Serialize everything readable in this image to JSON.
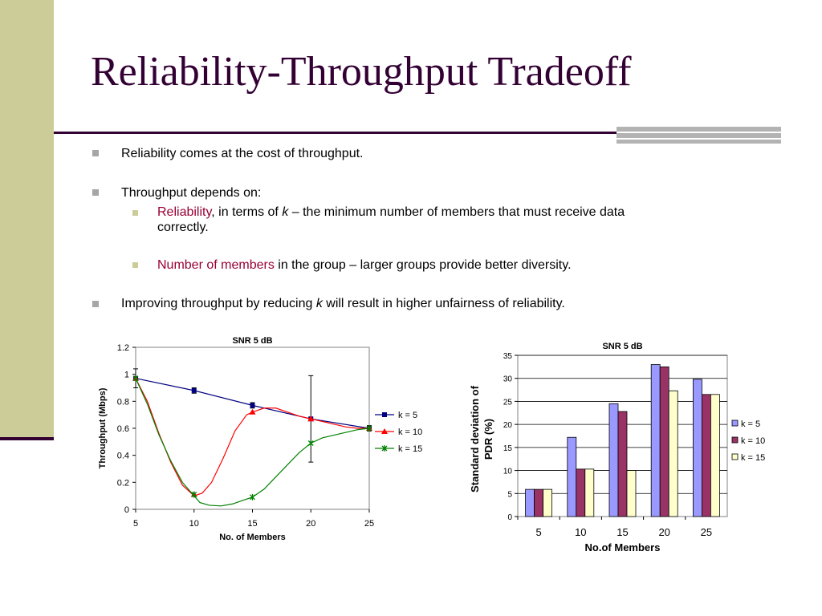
{
  "slide": {
    "title": "Reliability-Throughput Tradeoff",
    "bullets": [
      {
        "text": "Reliability comes at the cost of throughput."
      },
      {
        "text": "Throughput depends on:"
      },
      {
        "sub": true,
        "highlight": "Reliability",
        "text_a": ", in terms of ",
        "em": "k",
        "text_b": " – the minimum number of members that must receive data",
        "text_c": "correctly."
      },
      {
        "sub": true,
        "highlight": "Number of members",
        "text_a": " in the group – larger groups provide better diversity."
      },
      {
        "text_a": "Improving throughput by reducing ",
        "em": "k",
        "text_b": " will result in higher unfairness of reliability."
      }
    ]
  },
  "chart_data": [
    {
      "type": "line",
      "title": "SNR 5 dB",
      "xlabel": "No. of Members",
      "ylabel": "Throughput (Mbps)",
      "xlim": [
        5,
        25
      ],
      "ylim": [
        0,
        1.2
      ],
      "xticks": [
        "5",
        "10",
        "15",
        "20",
        "25"
      ],
      "yticks": [
        "0",
        "0.2",
        "0.4",
        "0.6",
        "0.8",
        "1",
        "1.2"
      ],
      "legend_position": "right",
      "series": [
        {
          "name": "k = 5",
          "color": "#000080",
          "marker": "square",
          "x": [
            5,
            10,
            15,
            20,
            25
          ],
          "y": [
            0.97,
            0.88,
            0.77,
            0.67,
            0.6
          ],
          "error": [
            0.07,
            0.02,
            0.02,
            0.32,
            0.02
          ]
        },
        {
          "name": "k = 10",
          "color": "#ff0000",
          "marker": "triangle",
          "x": [
            5,
            10,
            15,
            20,
            25
          ],
          "y": [
            0.97,
            0.11,
            0.72,
            0.67,
            0.6
          ],
          "smooth_x": [
            5,
            6,
            7,
            8,
            9,
            10,
            10.7,
            11.5,
            12.5,
            13.5,
            14.5,
            15,
            16,
            17,
            18,
            19,
            20,
            21,
            22,
            23,
            24,
            25
          ],
          "smooth_y": [
            0.97,
            0.8,
            0.56,
            0.35,
            0.18,
            0.1,
            0.12,
            0.2,
            0.38,
            0.58,
            0.7,
            0.72,
            0.75,
            0.75,
            0.72,
            0.69,
            0.67,
            0.65,
            0.63,
            0.61,
            0.6,
            0.6
          ]
        },
        {
          "name": "k = 15",
          "color": "#008000",
          "marker": "star",
          "x": [
            5,
            10,
            15,
            20,
            25
          ],
          "y": [
            0.97,
            0.11,
            0.09,
            0.49,
            0.6
          ],
          "smooth_x": [
            5,
            6,
            7,
            8,
            9,
            10,
            10.5,
            11.3,
            12.3,
            13.3,
            14.3,
            15,
            16,
            17,
            18,
            19,
            20,
            21,
            22,
            23,
            24,
            25
          ],
          "smooth_y": [
            0.97,
            0.78,
            0.55,
            0.36,
            0.2,
            0.1,
            0.05,
            0.03,
            0.025,
            0.04,
            0.07,
            0.09,
            0.15,
            0.24,
            0.33,
            0.42,
            0.49,
            0.53,
            0.55,
            0.57,
            0.59,
            0.6
          ]
        }
      ]
    },
    {
      "type": "bar",
      "title": "SNR 5 dB",
      "xlabel": "No.of Members",
      "ylabel": "Standard deviation of PDR (%)",
      "ylabel_lines": [
        "Standard deviation of",
        "PDR (%)"
      ],
      "ylim": [
        0,
        35
      ],
      "yticks": [
        "0",
        "5",
        "10",
        "15",
        "20",
        "25",
        "30",
        "35"
      ],
      "categories": [
        "5",
        "10",
        "15",
        "20",
        "25"
      ],
      "legend_position": "right",
      "series": [
        {
          "name": "k = 5",
          "color": "#9999ff",
          "values": [
            5.9,
            17.2,
            24.5,
            33.0,
            29.8
          ]
        },
        {
          "name": "k = 10",
          "color": "#993366",
          "values": [
            5.9,
            10.3,
            22.8,
            32.5,
            26.5
          ]
        },
        {
          "name": "k = 15",
          "color": "#ffffcc",
          "values": [
            5.9,
            10.3,
            10.0,
            27.3,
            26.5
          ]
        }
      ]
    }
  ]
}
